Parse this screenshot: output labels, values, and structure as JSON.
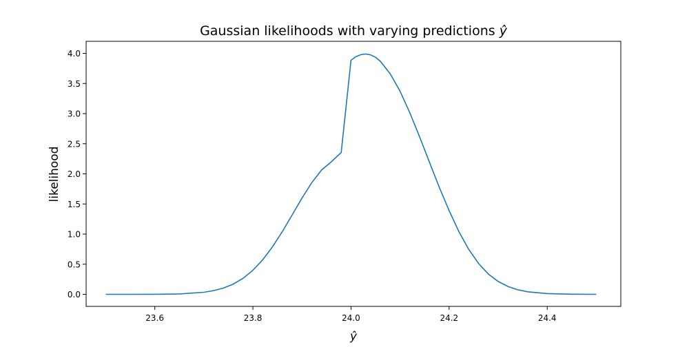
{
  "chart_data": {
    "type": "line",
    "title": "Gaussian likelihoods with varying predictions",
    "title_symbol": "ŷ",
    "xlabel": "ŷ",
    "ylabel": "likelihood",
    "xlim": [
      23.46,
      24.55
    ],
    "ylim": [
      -0.2,
      4.2
    ],
    "x_ticks": [
      23.6,
      23.8,
      24.0,
      24.2,
      24.4
    ],
    "x_tick_labels": [
      "23.6",
      "23.8",
      "24.0",
      "24.2",
      "24.4"
    ],
    "y_ticks": [
      0.0,
      0.5,
      1.0,
      1.5,
      2.0,
      2.5,
      3.0,
      3.5,
      4.0
    ],
    "y_tick_labels": [
      "0.0",
      "0.5",
      "1.0",
      "1.5",
      "2.0",
      "2.5",
      "3.0",
      "3.5",
      "4.0"
    ],
    "grid": false,
    "legend": "none",
    "line_color": "#1f77b4",
    "series": [
      {
        "x": [
          23.5,
          23.55,
          23.6,
          23.65,
          23.7,
          23.72,
          23.74,
          23.76,
          23.78,
          23.8,
          23.82,
          23.84,
          23.86,
          23.88,
          23.9,
          23.92,
          23.94,
          23.96,
          23.98,
          24.0,
          24.01,
          24.02,
          24.03,
          24.04,
          24.05,
          24.06,
          24.08,
          24.1,
          24.12,
          24.14,
          24.16,
          24.18,
          24.2,
          24.22,
          24.24,
          24.26,
          24.28,
          24.3,
          24.32,
          24.34,
          24.36,
          24.4,
          24.45,
          24.5
        ],
        "y": [
          0.0,
          0.0001,
          0.0009,
          0.0062,
          0.0344,
          0.0612,
          0.1043,
          0.1702,
          0.266,
          0.3989,
          0.5733,
          0.7895,
          1.0417,
          1.3171,
          1.5961,
          1.8537,
          2.0632,
          2.2016,
          2.3537,
          3.887,
          3.9444,
          3.9788,
          3.9894,
          3.9748,
          3.9352,
          3.8674,
          3.6603,
          3.3719,
          3.0127,
          2.6124,
          2.191,
          1.7753,
          1.3904,
          1.0402,
          0.7467,
          0.5128,
          0.3375,
          0.2142,
          0.13,
          0.0758,
          0.0424,
          0.0119,
          0.0016,
          0.0001
        ]
      }
    ]
  }
}
